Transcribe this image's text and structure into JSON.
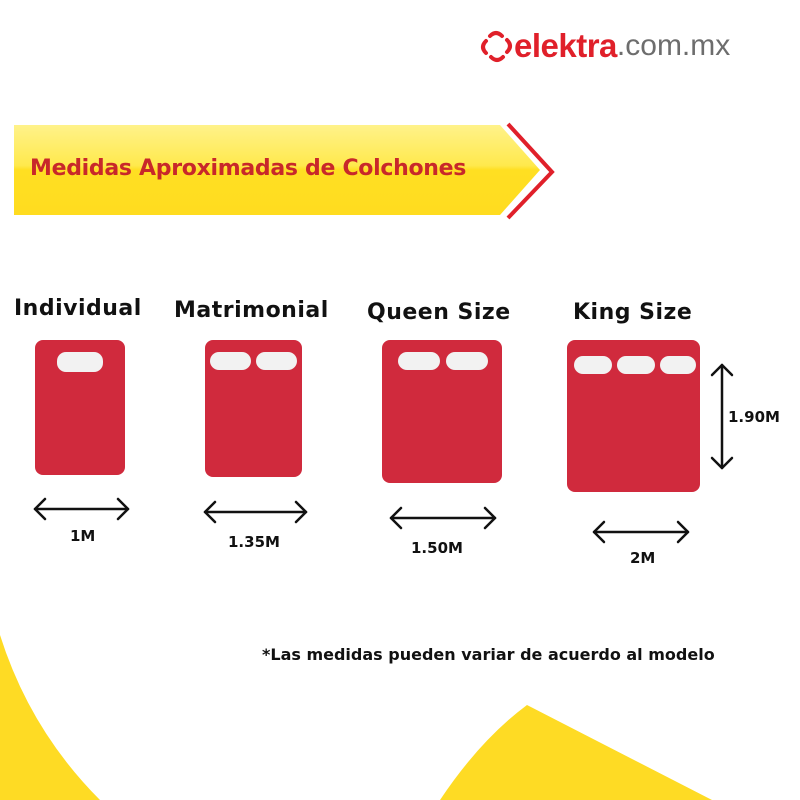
{
  "logo": {
    "brand": "elektra",
    "tld": ".com.mx",
    "colors": {
      "brand": "#e0202a",
      "tld": "#6d6d6d"
    }
  },
  "banner": {
    "title": "Medidas Aproximadas de Colchones",
    "colors": {
      "fill": "#ffe033",
      "text": "#c8282a",
      "chevron": "#e0202a"
    }
  },
  "beds": [
    {
      "name": "Individual",
      "width_label": "1M",
      "pillows": 1
    },
    {
      "name": "Matrimonial",
      "width_label": "1.35M",
      "pillows": 2
    },
    {
      "name": "Queen Size",
      "width_label": "1.50M",
      "pillows": 2
    },
    {
      "name": "King Size",
      "width_label": "2M",
      "length_label": "1.90M",
      "pillows": 3
    }
  ],
  "note": "*Las medidas pueden variar de acuerdo al modelo",
  "colors": {
    "mattress": "#d02a3d",
    "pillow": "#f2f2f2",
    "accent_yellow": "#fedb24"
  }
}
